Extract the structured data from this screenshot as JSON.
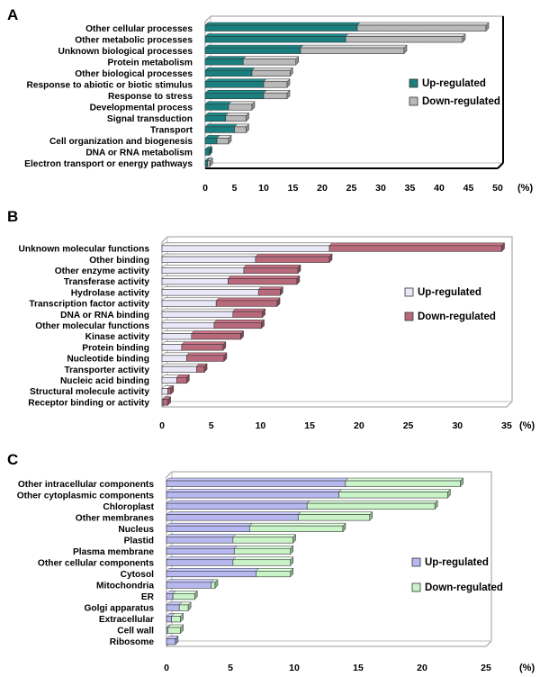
{
  "chart_data": [
    {
      "type": "bar",
      "panel_label": "A",
      "stacked": true,
      "orientation": "horizontal",
      "unit_label": "(%)",
      "xlim": [
        0,
        50
      ],
      "xticks": [
        "0",
        "5",
        "10",
        "15",
        "20",
        "25",
        "30",
        "35",
        "40",
        "45",
        "50"
      ],
      "categories": [
        "Other cellular processes",
        "Other metabolic processes",
        "Unknown biological processes",
        "Protein metabolism",
        "Other biological processes",
        "Response to abiotic or biotic stimulus",
        "Response to stress",
        "Developmental process",
        "Signal transduction",
        "Transport",
        "Cell organization and biogenesis",
        "DNA or RNA metabolism",
        "Electron transport or energy pathways"
      ],
      "series": [
        {
          "name": "Up-regulated",
          "color": "#1a7f7f",
          "values": [
            26,
            24,
            16.3,
            6.5,
            8,
            10,
            10,
            4,
            3.5,
            5,
            2,
            0.7,
            0.4
          ]
        },
        {
          "name": "Down-regulated",
          "color": "#c8c8c8",
          "values": [
            22,
            20,
            17.7,
            9,
            6.5,
            4,
            4,
            4,
            3.5,
            2,
            2,
            0,
            0.4
          ]
        }
      ]
    },
    {
      "type": "bar",
      "panel_label": "B",
      "stacked": true,
      "orientation": "horizontal",
      "unit_label": "(%)",
      "xlim": [
        0,
        35
      ],
      "xticks": [
        "0",
        "5",
        "10",
        "15",
        "20",
        "25",
        "30",
        "35"
      ],
      "categories": [
        "Unknown molecular functions",
        "Other binding",
        "Other enzyme activity",
        "Transferase activity",
        "Hydrolase activity",
        "Transcription factor activity",
        "DNA or RNA binding",
        "Other molecular functions",
        "Kinase activity",
        "Protein binding",
        "Nucleotide binding",
        "Transporter activity",
        "Nucleic acid binding",
        "Structural molecule activity",
        "Receptor binding or activity"
      ],
      "series": [
        {
          "name": "Up-regulated",
          "color": "#e8e8f8",
          "values": [
            17,
            9.5,
            8.3,
            6.7,
            9.8,
            5.5,
            7.2,
            5.3,
            3,
            2,
            2.5,
            3.5,
            1.5,
            0.6,
            0.1
          ]
        },
        {
          "name": "Down-regulated",
          "color": "#b86a7c",
          "values": [
            17.5,
            7.5,
            5.5,
            7,
            2.2,
            6.2,
            3,
            4.8,
            5,
            4.2,
            3.8,
            0.8,
            1,
            0.3,
            0.5
          ]
        }
      ]
    },
    {
      "type": "bar",
      "panel_label": "C",
      "stacked": true,
      "orientation": "horizontal",
      "unit_label": "(%)",
      "xlim": [
        0,
        25
      ],
      "xticks": [
        "0",
        "5",
        "10",
        "15",
        "20",
        "25"
      ],
      "categories": [
        "Other intracellular components",
        "Other cytoplasmic components",
        "Chloroplast",
        "Other membranes",
        "Nucleus",
        "Plastid",
        "Plasma membrane",
        "Other cellular components",
        "Cytosol",
        "Mitochondria",
        "ER",
        "Golgi apparatus",
        "Extracellular",
        "Cell wall",
        "Ribosome"
      ],
      "series": [
        {
          "name": "Up-regulated",
          "color": "#b8b8f0",
          "values": [
            14,
            13.5,
            11,
            10.3,
            6.5,
            5.2,
            5.3,
            5.2,
            7,
            3.5,
            0.5,
            1,
            0.4,
            0.1,
            0.7
          ]
        },
        {
          "name": "Down-regulated",
          "color": "#c8f4c8",
          "values": [
            9,
            8.5,
            10,
            5.6,
            7.3,
            4.7,
            4.4,
            4.5,
            2.7,
            0.3,
            1.7,
            0.7,
            0.7,
            1.0,
            0
          ]
        }
      ]
    }
  ]
}
